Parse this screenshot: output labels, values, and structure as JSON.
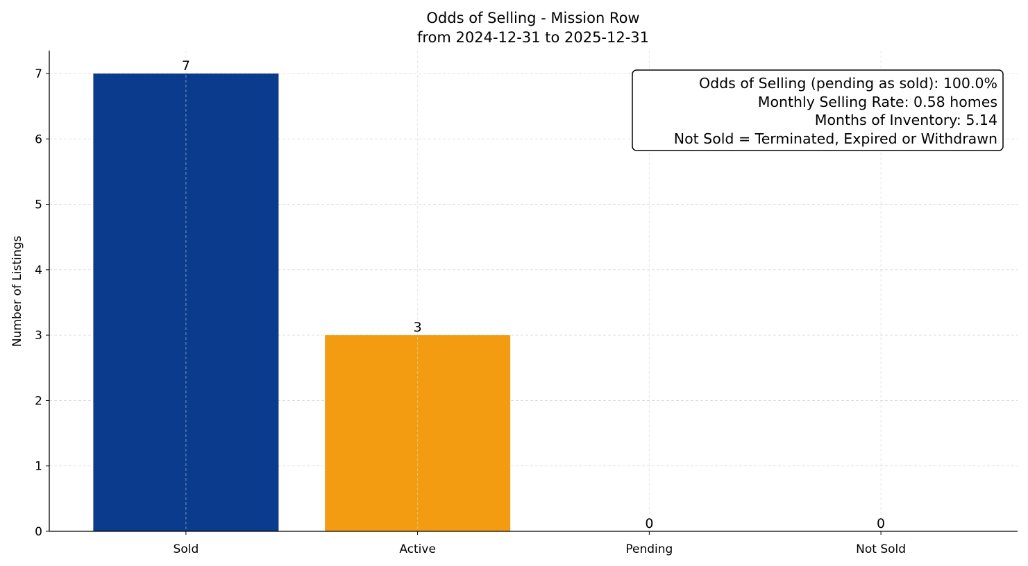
{
  "chart_data": {
    "type": "bar",
    "title": "Odds of Selling - Mission Row",
    "subtitle": "from 2024-12-31 to 2025-12-31",
    "xlabel": "",
    "ylabel": "Number of Listings",
    "categories": [
      "Sold",
      "Active",
      "Pending",
      "Not Sold"
    ],
    "values": [
      7,
      3,
      0,
      0
    ],
    "data_labels": [
      "7",
      "3",
      "0",
      "0"
    ],
    "colors": [
      "#0b3b8c",
      "#f39c12",
      "#7f8c8d",
      "#c0392b"
    ],
    "ylim": [
      0,
      7.35
    ],
    "yticks": [
      0,
      1,
      2,
      3,
      4,
      5,
      6,
      7
    ],
    "grid": true,
    "annotation_box": {
      "placement": "top-right",
      "lines": [
        "Odds of Selling (pending as sold): 100.0%",
        "Monthly Selling Rate: 0.58 homes",
        "Months of Inventory: 5.14",
        "Not Sold = Terminated, Expired or Withdrawn"
      ]
    }
  }
}
